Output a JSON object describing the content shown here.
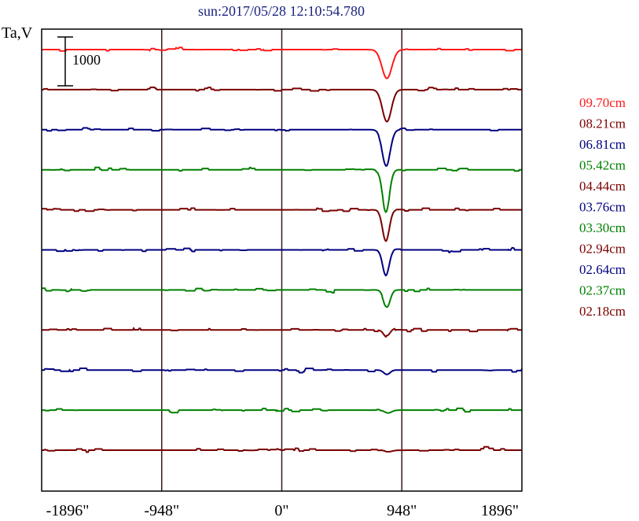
{
  "chart_data": {
    "type": "line",
    "title": "sun:2017/05/28 12:10:54.780",
    "ylabel": "Ta,V",
    "xlabel": "",
    "xlim": [
      -1896,
      1896
    ],
    "x_ticks": [
      {
        "value": -1896,
        "label": "-1896\""
      },
      {
        "value": -948,
        "label": "-948\""
      },
      {
        "value": 0,
        "label": "0\""
      },
      {
        "value": 948,
        "label": "948\""
      },
      {
        "value": 1896,
        "label": "1896\""
      }
    ],
    "vertical_gridlines": [
      -948,
      0,
      948
    ],
    "scale_bar": {
      "value": 1000,
      "label": "1000"
    },
    "legend_placement": "right",
    "colors": {
      "title": "#1a237e",
      "axis": "#000000",
      "gridline": "#3a1a1a"
    },
    "series": [
      {
        "name": "09.70cm",
        "color": "#ff1a1a",
        "offset": 10000,
        "dip_depth": 720,
        "dip_center": 830,
        "dip_width": 55
      },
      {
        "name": "08.21cm",
        "color": "#7a0000",
        "offset": 9000,
        "dip_depth": 800,
        "dip_center": 830,
        "dip_width": 50
      },
      {
        "name": "06.81cm",
        "color": "#000080",
        "offset": 8000,
        "dip_depth": 880,
        "dip_center": 825,
        "dip_width": 45
      },
      {
        "name": "05.42cm",
        "color": "#008000",
        "offset": 7000,
        "dip_depth": 1020,
        "dip_center": 822,
        "dip_width": 40
      },
      {
        "name": "04.44cm",
        "color": "#7a0000",
        "offset": 6000,
        "dip_depth": 780,
        "dip_center": 822,
        "dip_width": 38
      },
      {
        "name": "03.76cm",
        "color": "#000080",
        "offset": 5000,
        "dip_depth": 640,
        "dip_center": 822,
        "dip_width": 36
      },
      {
        "name": "03.30cm",
        "color": "#008000",
        "offset": 4000,
        "dip_depth": 430,
        "dip_center": 830,
        "dip_width": 36
      },
      {
        "name": "02.94cm",
        "color": "#7a0000",
        "offset": 3000,
        "dip_depth": 180,
        "dip_center": 830,
        "dip_width": 35
      },
      {
        "name": "02.64cm",
        "color": "#000080",
        "offset": 2000,
        "dip_depth": 110,
        "dip_center": 830,
        "dip_width": 35
      },
      {
        "name": "02.37cm",
        "color": "#008000",
        "offset": 1000,
        "dip_depth": 70,
        "dip_center": 840,
        "dip_width": 40
      },
      {
        "name": "02.18cm",
        "color": "#7a0000",
        "offset": 0,
        "dip_depth": 40,
        "dip_center": 840,
        "dip_width": 45
      }
    ]
  }
}
